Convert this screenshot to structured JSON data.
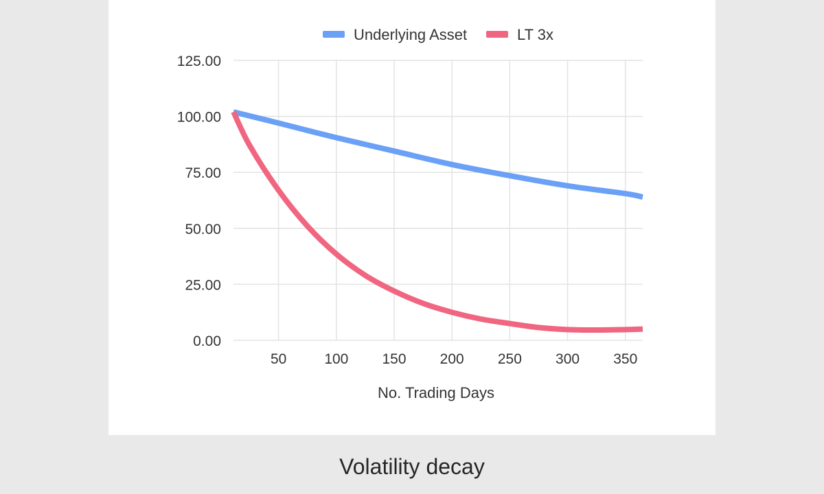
{
  "caption": "Volatility decay",
  "colors": {
    "underlying": "#6aa0f5",
    "lt3x": "#f06680",
    "grid": "#e3e3e3",
    "axis_text": "#333333",
    "background": "#e9e9e9",
    "panel": "#ffffff"
  },
  "chart_data": {
    "type": "line",
    "title": "",
    "xlabel": "No. Trading Days",
    "ylabel": "",
    "xlim": [
      11,
      365
    ],
    "ylim": [
      0,
      125
    ],
    "x_ticks": [
      50,
      100,
      150,
      200,
      250,
      300,
      350
    ],
    "x_tick_labels": [
      "50",
      "100",
      "150",
      "200",
      "250",
      "300",
      "350"
    ],
    "y_ticks": [
      0,
      25,
      50,
      75,
      100,
      125
    ],
    "y_tick_labels": [
      "0.00",
      "25.00",
      "50.00",
      "75.00",
      "100.00",
      "125.00"
    ],
    "grid": true,
    "legend_position": "top",
    "series": [
      {
        "name": "Underlying Asset",
        "color": "#6aa0f5",
        "x": [
          11,
          50,
          100,
          150,
          200,
          250,
          300,
          350,
          365
        ],
        "y": [
          102,
          97,
          90.5,
          84.5,
          78.5,
          73.5,
          69,
          65.5,
          64
        ]
      },
      {
        "name": "LT 3x",
        "color": "#f06680",
        "x": [
          11,
          25,
          50,
          75,
          100,
          125,
          150,
          175,
          200,
          225,
          250,
          275,
          300,
          325,
          350,
          365
        ],
        "y": [
          102,
          87,
          67,
          51,
          38.5,
          29,
          22,
          16.5,
          12.5,
          9.5,
          7.5,
          5.7,
          4.8,
          4.6,
          4.8,
          5
        ]
      }
    ]
  }
}
